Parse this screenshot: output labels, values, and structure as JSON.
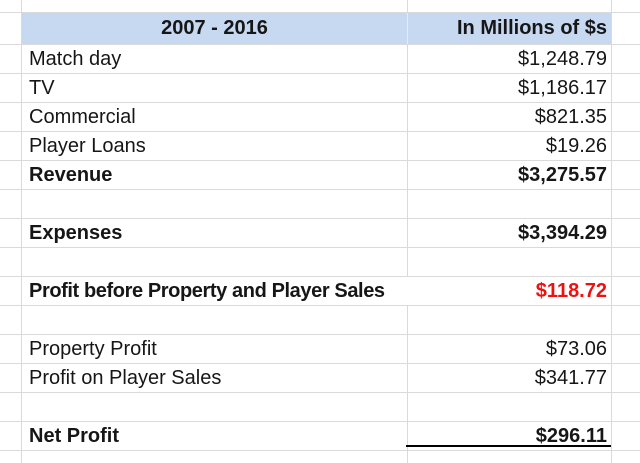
{
  "header": {
    "period": "2007 - 2016",
    "unit": "In Millions of $s"
  },
  "rows": [
    {
      "label": "Match day",
      "value": "$1,248.79"
    },
    {
      "label": "TV",
      "value": "$1,186.17"
    },
    {
      "label": "Commercial",
      "value": "$821.35"
    },
    {
      "label": "Player Loans",
      "value": "$19.26"
    },
    {
      "label": "Revenue",
      "value": "$3,275.57"
    },
    {
      "label": "",
      "value": ""
    },
    {
      "label": "Expenses",
      "value": "$3,394.29"
    },
    {
      "label": "",
      "value": ""
    },
    {
      "label": "Profit before Property and Player Sales",
      "value": "$118.72"
    },
    {
      "label": "",
      "value": ""
    },
    {
      "label": "Property Profit",
      "value": "$73.06"
    },
    {
      "label": "Profit on Player Sales",
      "value": "$341.77"
    },
    {
      "label": "",
      "value": ""
    },
    {
      "label": "Net Profit",
      "value": "$296.11"
    }
  ],
  "colors": {
    "header_bg": "#c6d9f0",
    "value_negative": "#ee1111",
    "gridline": "#dadada"
  }
}
